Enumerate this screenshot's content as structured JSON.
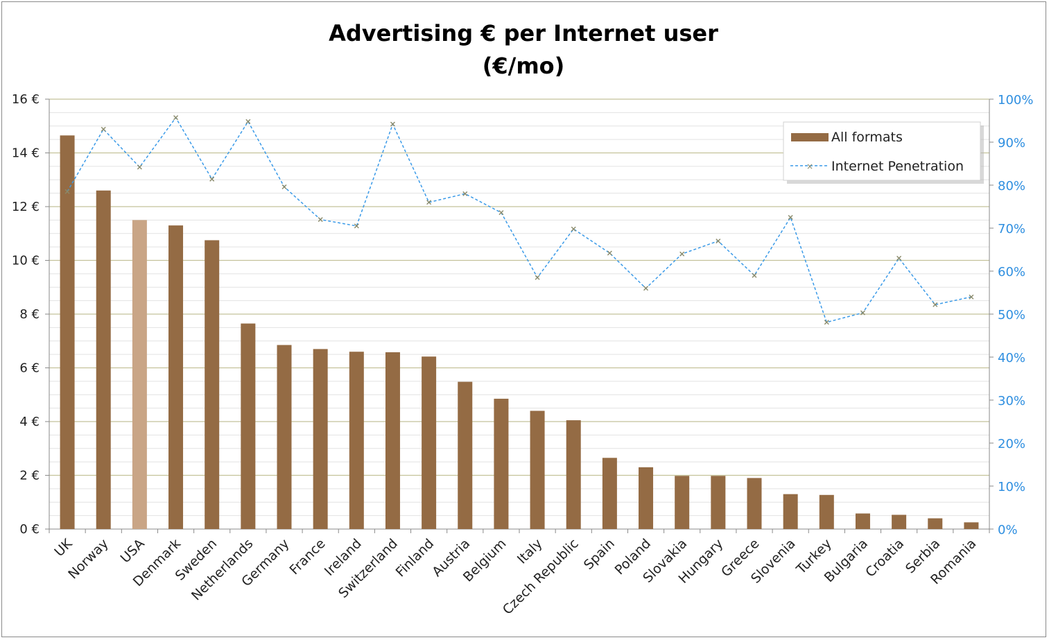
{
  "chart_data": {
    "type": "bar",
    "title": "Advertising € per Internet user",
    "subtitle": "(€/mo)",
    "categories": [
      "UK",
      "Norway",
      "USA",
      "Denmark",
      "Sweden",
      "Netherlands",
      "Germany",
      "France",
      "Ireland",
      "Switzerland",
      "Finland",
      "Austria",
      "Belgium",
      "Italy",
      "Czech Republic",
      "Spain",
      "Poland",
      "Slovakia",
      "Hungary",
      "Greece",
      "Slovenia",
      "Turkey",
      "Bulgaria",
      "Croatia",
      "Serbia",
      "Romania"
    ],
    "series": [
      {
        "name": "All formats",
        "type": "bar",
        "axis": "left",
        "color": "#946b44",
        "highlight_color": "#c9a586",
        "highlight_index": 2,
        "values": [
          14.65,
          12.6,
          11.5,
          11.3,
          10.75,
          7.65,
          6.85,
          6.7,
          6.6,
          6.58,
          6.42,
          5.48,
          4.85,
          4.4,
          4.05,
          2.65,
          2.3,
          1.98,
          1.98,
          1.9,
          1.3,
          1.27,
          0.58,
          0.53,
          0.4,
          0.25
        ]
      },
      {
        "name": "Internet Penetration",
        "type": "line",
        "axis": "right",
        "color": "#3a9ae8",
        "marker_color": "#8a8a6a",
        "values": [
          78.5,
          93,
          84.2,
          95.7,
          81.4,
          94.8,
          79.6,
          72,
          70.5,
          94.2,
          76,
          78,
          73.6,
          58.5,
          69.8,
          64.2,
          56,
          64,
          67,
          59,
          72.5,
          48.1,
          50.3,
          63,
          52.2,
          54
        ]
      }
    ],
    "y_left": {
      "min": 0,
      "max": 16,
      "ticks": [
        "0 €",
        "2 €",
        "4 €",
        "6 €",
        "8 €",
        "10 €",
        "12 €",
        "14 €",
        "16 €"
      ]
    },
    "y_right": {
      "min": 0,
      "max": 100,
      "ticks": [
        "0%",
        "10%",
        "20%",
        "30%",
        "40%",
        "50%",
        "60%",
        "70%",
        "80%",
        "90%",
        "100%"
      ]
    },
    "grid": true,
    "legend_position": "top-right",
    "legend": [
      "All formats",
      "Internet Penetration"
    ]
  }
}
